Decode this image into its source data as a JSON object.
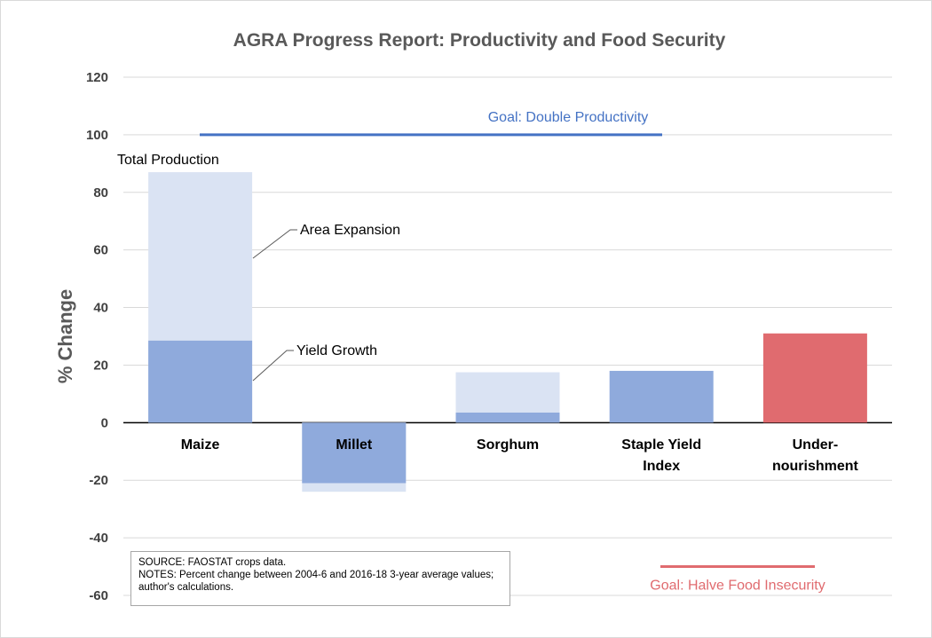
{
  "chart_data": {
    "type": "bar",
    "title": "AGRA Progress Report: Productivity and Food Security",
    "ylabel": "% Change",
    "ylim": [
      -60,
      120
    ],
    "yticks": [
      120,
      100,
      80,
      60,
      40,
      20,
      0,
      -20,
      -40,
      -60
    ],
    "grid": true,
    "categories": [
      "Maize",
      "Millet",
      "Sorghum",
      "Staple Yield Index",
      "Under-nourishment"
    ],
    "category_lines": [
      [
        "Maize"
      ],
      [
        "Millet"
      ],
      [
        "Sorghum"
      ],
      [
        "Staple Yield",
        "Index"
      ],
      [
        "Under-",
        "nourishment"
      ]
    ],
    "series": [
      {
        "name": "Total Production",
        "values": [
          87,
          -24,
          17.5,
          null,
          null
        ],
        "color": "#dae3f3"
      },
      {
        "name": "Yield Growth",
        "values": [
          28.5,
          -21,
          3.5,
          18,
          null
        ],
        "color": "#8faadc"
      },
      {
        "name": "",
        "values": [
          null,
          null,
          null,
          null,
          31
        ],
        "color": "#e06b6f"
      }
    ],
    "annotations": {
      "total_production": "Total Production",
      "area_expansion": "Area Expansion",
      "yield_growth": "Yield Growth"
    },
    "goals": [
      {
        "label": "Goal: Double Productivity",
        "value": 100,
        "color": "#4472c4"
      },
      {
        "label": "Goal: Halve Food Insecurity",
        "value": -50,
        "color": "#e06b6f"
      }
    ]
  },
  "notes": {
    "source": "SOURCE: FAOSTAT crops data.",
    "text": "NOTES: Percent change between 2004-6 and 2016-18 3-year average values; author's calculations."
  }
}
